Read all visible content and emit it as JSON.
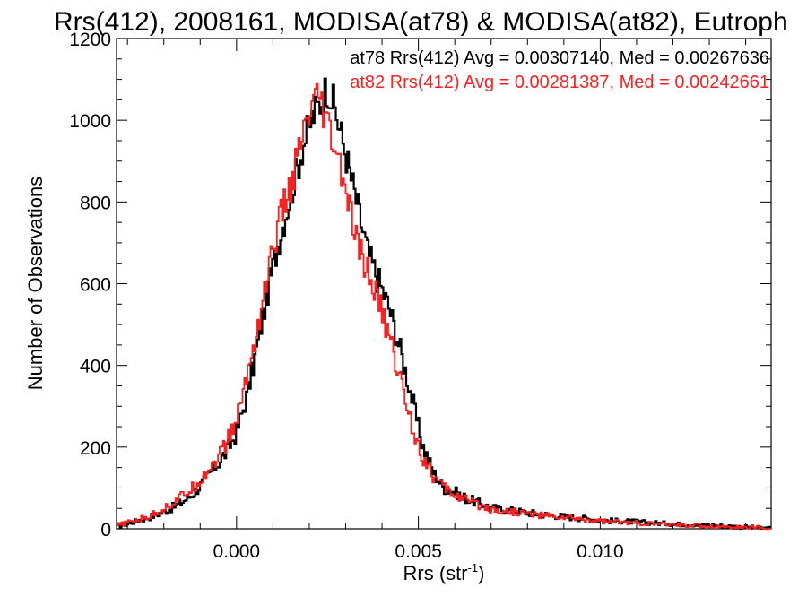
{
  "chart_data": {
    "type": "line",
    "title": "Rrs(412), 2008161, MODISA(at78) & MODISA(at82), Eutroph",
    "xlabel_main": "Rrs (str",
    "xlabel_sup": "-1",
    "xlabel_end": ")",
    "ylabel": "Number of Observations",
    "xlim": [
      -0.0033,
      0.0147
    ],
    "ylim": [
      0,
      1200
    ],
    "x_ticks": [
      0.0,
      0.005,
      0.01
    ],
    "x_tick_labels": [
      "0.000",
      "0.005",
      "0.010"
    ],
    "y_ticks": [
      0,
      200,
      400,
      600,
      800,
      1000,
      1200
    ],
    "y_tick_labels": [
      "0",
      "200",
      "400",
      "600",
      "800",
      "1000",
      "1200"
    ],
    "legend_position": "top-right",
    "series": [
      {
        "legend": "at78 Rrs(412) Avg = 0.00307140, Med = 0.00267636",
        "color": "#000000",
        "x": [
          -0.0033,
          -0.003,
          -0.0027,
          -0.0024,
          -0.0021,
          -0.0018,
          -0.0015,
          -0.0012,
          -0.0009,
          -0.0006,
          -0.0003,
          0.0,
          0.0003,
          0.0006,
          0.0009,
          0.0012,
          0.0015,
          0.0018,
          0.0021,
          0.0024,
          0.0025,
          0.0027,
          0.003,
          0.0033,
          0.0036,
          0.0039,
          0.0042,
          0.0045,
          0.0048,
          0.0051,
          0.0054,
          0.0057,
          0.006,
          0.0063,
          0.0066,
          0.0069,
          0.0072,
          0.0078,
          0.0084,
          0.009,
          0.0096,
          0.0102,
          0.0108,
          0.0114,
          0.012,
          0.0126,
          0.0132,
          0.0138,
          0.0144,
          0.0147
        ],
        "y": [
          5,
          12,
          20,
          28,
          38,
          50,
          65,
          85,
          115,
          150,
          185,
          235,
          330,
          460,
          600,
          720,
          820,
          930,
          1010,
          1060,
          1085,
          1030,
          920,
          800,
          680,
          610,
          540,
          440,
          330,
          210,
          140,
          100,
          90,
          75,
          65,
          55,
          48,
          42,
          35,
          30,
          25,
          20,
          18,
          15,
          12,
          10,
          8,
          5,
          2,
          0
        ]
      },
      {
        "legend": "at82 Rrs(412) Avg = 0.00281387, Med = 0.00242661",
        "color": "#ff1e1e",
        "x": [
          -0.0033,
          -0.003,
          -0.0027,
          -0.0024,
          -0.0021,
          -0.0018,
          -0.0015,
          -0.0012,
          -0.0009,
          -0.0006,
          -0.0003,
          0.0,
          0.0003,
          0.0006,
          0.0009,
          0.0012,
          0.0015,
          0.0018,
          0.0021,
          0.0023,
          0.0024,
          0.0027,
          0.003,
          0.0033,
          0.0036,
          0.0039,
          0.0042,
          0.0045,
          0.0048,
          0.0051,
          0.0054,
          0.0057,
          0.006,
          0.0063,
          0.0066,
          0.0069,
          0.0072,
          0.0078,
          0.0084,
          0.009,
          0.0096,
          0.0102,
          0.0108,
          0.0114,
          0.012,
          0.0126,
          0.0132,
          0.0138,
          0.0144,
          0.0147
        ],
        "y": [
          8,
          15,
          22,
          30,
          45,
          60,
          80,
          100,
          130,
          165,
          205,
          265,
          380,
          500,
          640,
          760,
          840,
          950,
          1030,
          1050,
          1010,
          930,
          830,
          700,
          630,
          560,
          470,
          370,
          260,
          180,
          130,
          100,
          85,
          70,
          60,
          52,
          45,
          40,
          33,
          28,
          22,
          18,
          15,
          12,
          10,
          8,
          6,
          4,
          2,
          0
        ]
      }
    ]
  }
}
